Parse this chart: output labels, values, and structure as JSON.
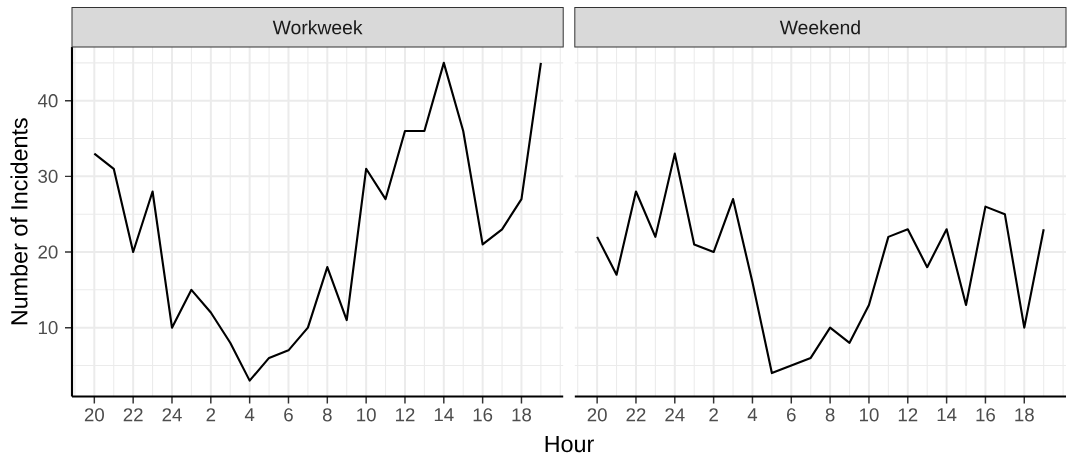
{
  "chart_data": [
    {
      "type": "line",
      "title": "Workweek",
      "xlabel": "Hour",
      "ylabel": "Number of Incidents",
      "categories": [
        "20",
        null,
        "22",
        null,
        "24",
        null,
        "2",
        null,
        "4",
        null,
        "6",
        null,
        "8",
        null,
        "10",
        null,
        "12",
        null,
        "14",
        null,
        "16",
        null,
        "18",
        null
      ],
      "values": [
        33,
        31,
        20,
        28,
        10,
        15,
        12,
        8,
        3,
        6,
        7,
        10,
        18,
        11,
        31,
        27,
        36,
        36,
        45,
        36,
        21,
        23,
        27,
        45
      ],
      "color": "#000000",
      "ylim": [
        0.9,
        47.1
      ],
      "yticks": [
        10,
        20,
        30,
        40
      ],
      "grid": true
    },
    {
      "type": "line",
      "title": "Weekend",
      "categories": [
        "20",
        null,
        "22",
        null,
        "24",
        null,
        "2",
        null,
        "4",
        null,
        "6",
        null,
        "8",
        null,
        "10",
        null,
        "12",
        null,
        "14",
        null,
        "16",
        null,
        "18",
        null
      ],
      "values": [
        22,
        17,
        28,
        22,
        33,
        21,
        20,
        27,
        16,
        4,
        5,
        6,
        10,
        8,
        13,
        22,
        23,
        18,
        23,
        13,
        26,
        25,
        10,
        23
      ],
      "color": "#000000",
      "ylim": [
        0.9,
        47.1
      ],
      "yticks": [
        10,
        20,
        30,
        40
      ],
      "grid": true,
      "tick_labels": "x"
    }
  ]
}
